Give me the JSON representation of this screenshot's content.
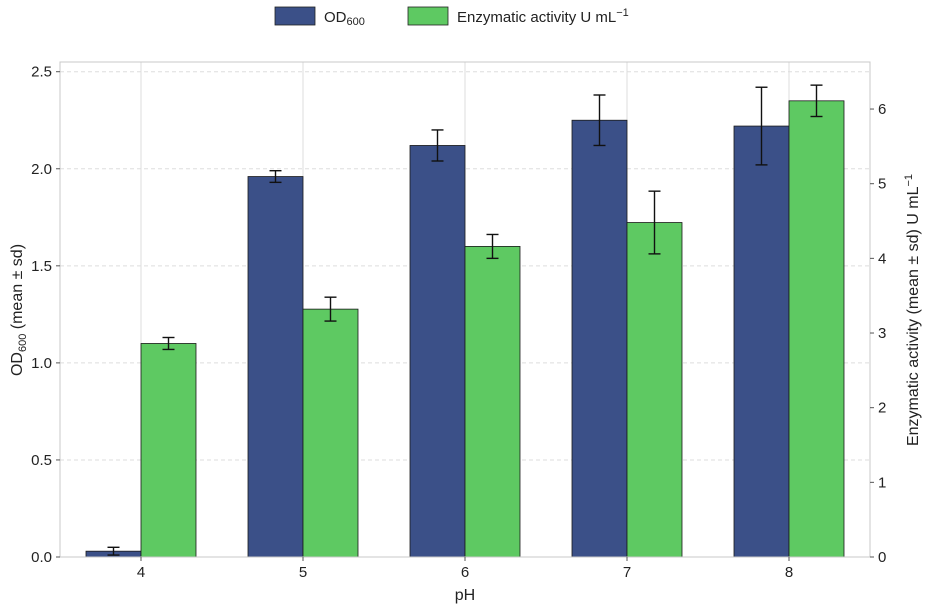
{
  "chart_data": {
    "type": "bar",
    "categories": [
      "4",
      "5",
      "6",
      "7",
      "8"
    ],
    "xlabel": "pH",
    "y_left": {
      "label_main": "OD",
      "label_sub": "600",
      "label_rest": " (mean ± sd)",
      "ylim": [
        0,
        2.55
      ],
      "ticks": [
        "0.0",
        "0.5",
        "1.0",
        "1.5",
        "2.0",
        "2.5"
      ]
    },
    "y_right": {
      "label": "Enzymatic activity (mean ± sd) U mL",
      "label_sup": "−1",
      "ylim": [
        0,
        6.63
      ],
      "ticks": [
        "0",
        "1",
        "2",
        "3",
        "4",
        "5",
        "6"
      ]
    },
    "grid": true,
    "legend_position": "top-center",
    "series": [
      {
        "name_main": "OD",
        "name_sub": "600",
        "axis": "left",
        "color": "#3b5088",
        "values": [
          0.03,
          1.96,
          2.12,
          2.25,
          2.22
        ],
        "errors": [
          0.02,
          0.03,
          0.08,
          0.13,
          0.2
        ]
      },
      {
        "name_main": "Enzymatic activity U mL",
        "name_sup": "−1",
        "axis": "right",
        "color": "#5ec962",
        "values": [
          2.86,
          3.32,
          4.16,
          4.48,
          6.11
        ],
        "errors": [
          0.08,
          0.16,
          0.16,
          0.42,
          0.21
        ]
      }
    ]
  }
}
